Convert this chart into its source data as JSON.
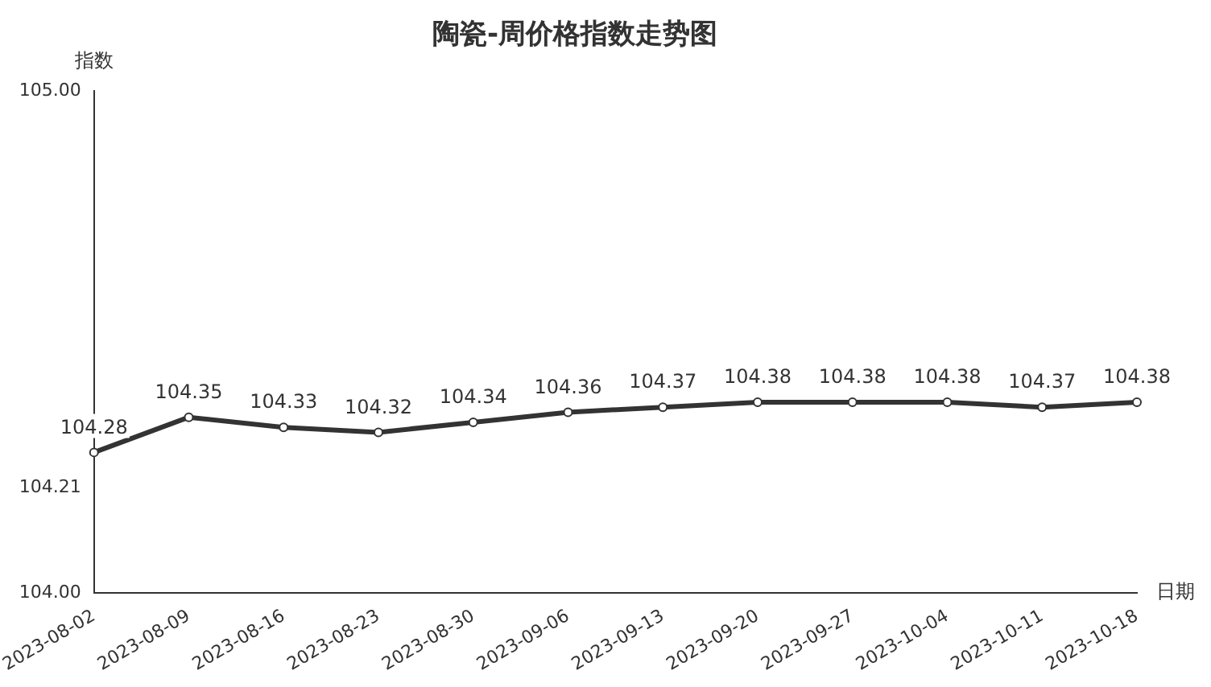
{
  "chart_data": {
    "type": "line",
    "title": "陶瓷-周价格指数走势图",
    "ylabel": "指数",
    "xlabel": "日期",
    "categories": [
      "2023-08-02",
      "2023-08-09",
      "2023-08-16",
      "2023-08-23",
      "2023-08-30",
      "2023-09-06",
      "2023-09-13",
      "2023-09-20",
      "2023-09-27",
      "2023-10-04",
      "2023-10-11",
      "2023-10-18"
    ],
    "series": [
      {
        "color": "#333333",
        "values": [
          104.28,
          104.35,
          104.33,
          104.32,
          104.34,
          104.36,
          104.37,
          104.38,
          104.38,
          104.38,
          104.37,
          104.38
        ]
      }
    ],
    "ylim": [
      104,
      105
    ],
    "yticks": [
      {
        "value": 104,
        "label": "104.00"
      },
      {
        "value": 104.21,
        "label": "104.21"
      },
      {
        "value": 105,
        "label": "105.00"
      }
    ],
    "grid": false,
    "legend": false,
    "marker": "circle",
    "line_style": "solid",
    "data_labels": true
  }
}
